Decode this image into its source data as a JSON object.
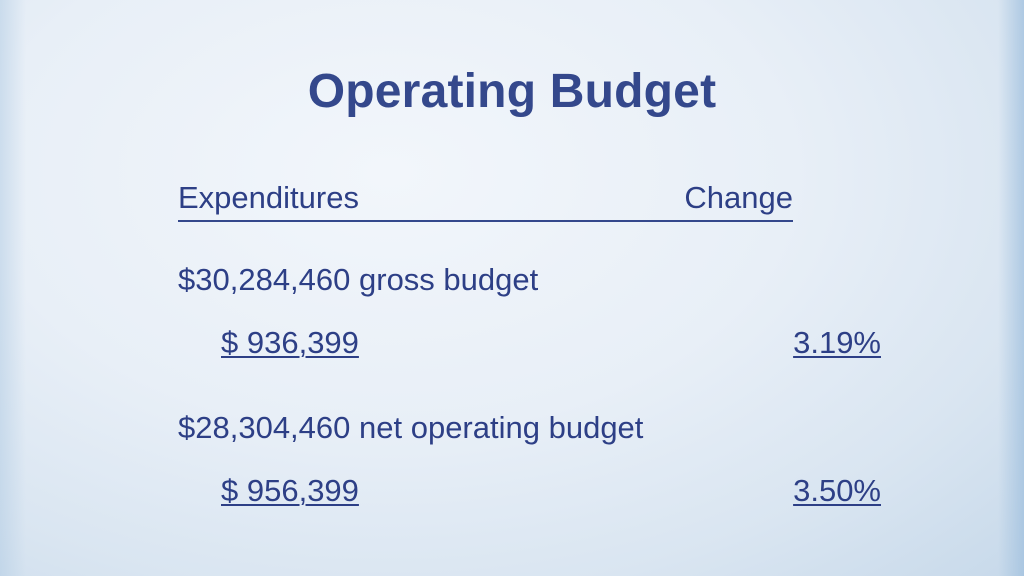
{
  "slide": {
    "title": "Operating Budget",
    "header": {
      "left": "Expenditures",
      "right": "Change"
    },
    "items": [
      {
        "description": "$30,284,460 gross budget",
        "amount": "$ 936,399",
        "change": "3.19%"
      },
      {
        "description": "$28,304,460 net operating budget",
        "amount": "$ 956,399",
        "change": "3.50%"
      }
    ]
  },
  "colors": {
    "text": "#2d3f86",
    "title": "#34488c",
    "background": "#e8eff7"
  }
}
